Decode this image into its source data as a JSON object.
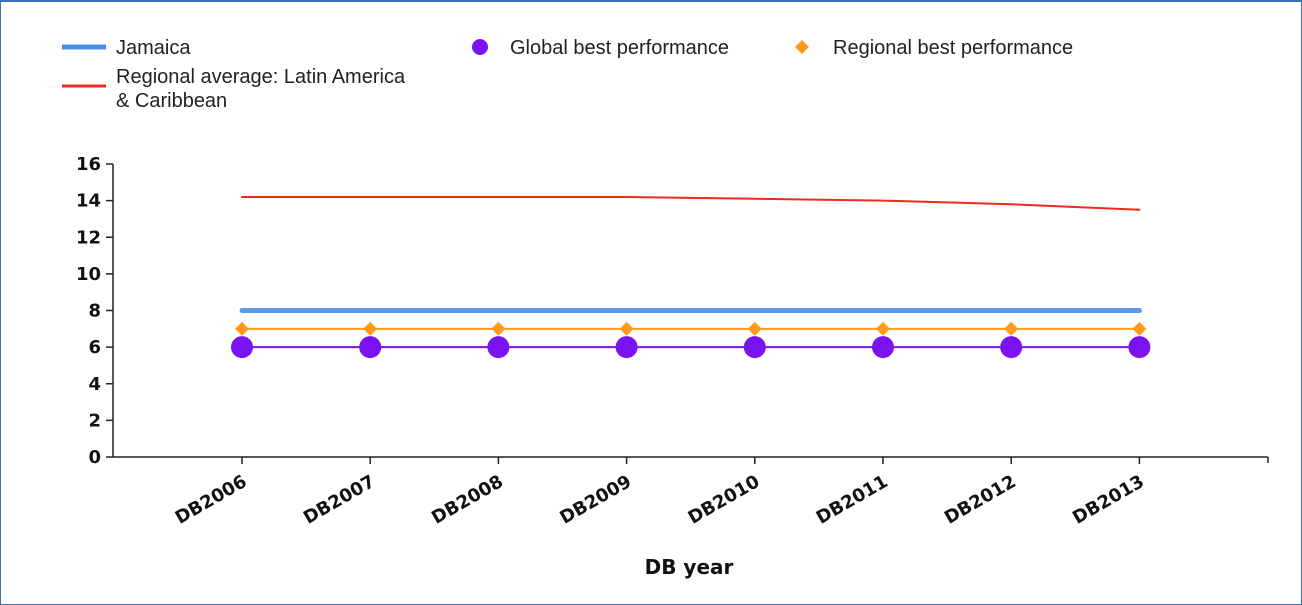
{
  "chart_data": {
    "type": "line",
    "title": "",
    "xlabel": "DB year",
    "ylabel": "",
    "ylim": [
      0,
      16
    ],
    "yticks": [
      0,
      2,
      4,
      6,
      8,
      10,
      12,
      14,
      16
    ],
    "categories": [
      "DB2006",
      "DB2007",
      "DB2008",
      "DB2009",
      "DB2010",
      "DB2011",
      "DB2012",
      "DB2013"
    ],
    "grid": false,
    "legend_position": "top",
    "series": [
      {
        "name": "Jamaica",
        "color": "#4a8ee8",
        "marker": "none",
        "values": [
          8,
          8,
          8,
          8,
          8,
          8,
          8,
          8
        ]
      },
      {
        "name": "Regional average: Latin America & Caribbean",
        "name_lines": [
          "Regional average: Latin America",
          "& Caribbean"
        ],
        "color": "#ee2a1a",
        "marker": "none",
        "values": [
          14.2,
          14.2,
          14.2,
          14.2,
          14.1,
          14.0,
          13.8,
          13.5
        ]
      },
      {
        "name": "Global best performance",
        "color": "#7a12f2",
        "marker": "circle",
        "values": [
          6,
          6,
          6,
          6,
          6,
          6,
          6,
          6
        ]
      },
      {
        "name": "Regional best performance",
        "color": "#ff9a1a",
        "marker": "diamond",
        "values": [
          7,
          7,
          7,
          7,
          7,
          7,
          7,
          7
        ]
      }
    ]
  }
}
